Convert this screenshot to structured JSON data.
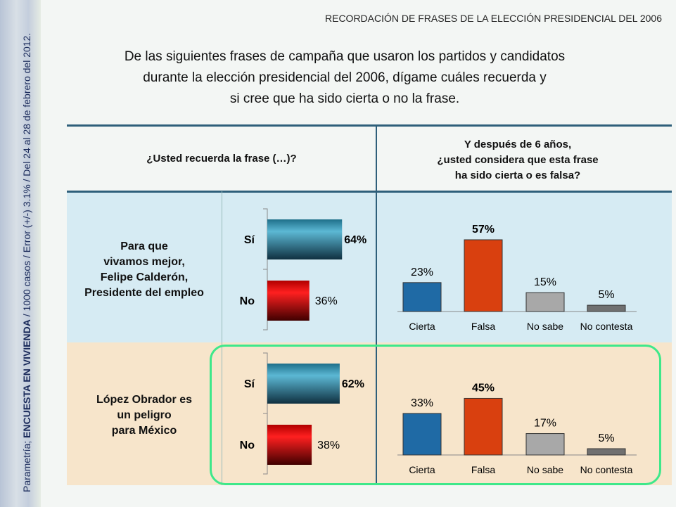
{
  "sidebar": {
    "prefix": "Parametría; ",
    "survey": "ENCUESTA EN VIVIENDA",
    "details": " / 1000 casos / Error (+/-) 3.1% / Del 24 al 28 de febrero del 2012."
  },
  "header": {
    "title": "RECORDACIÓN DE FRASES DE LA ELECCIÓN PRESIDENCIAL DEL 2006"
  },
  "question": [
    "De las siguientes frases de campaña que usaron los partidos y candidatos",
    "durante la elección presidencial del 2006, dígame cuáles recuerda y",
    "si cree que ha sido cierta o no la frase."
  ],
  "columns": {
    "left": "¿Usted recuerda la frase (…)?",
    "right": [
      "Y después de 6 años,",
      "¿usted considera que esta frase",
      "ha sido cierta o es falsa?"
    ]
  },
  "rows": [
    {
      "phrase": [
        "Para que",
        "vivamos mejor,",
        "Felipe Calderón,",
        "Presidente del empleo"
      ]
    },
    {
      "phrase": [
        "López Obrador es",
        "un peligro",
        "para México"
      ]
    }
  ],
  "colors": {
    "si": "#2a7f9a",
    "no": "#d00000",
    "cierta": "#1f6aa5",
    "falsa": "#d9400f",
    "no_sabe": "#a8a8a8",
    "no_contesta": "#707070",
    "row1_bg": "#d6ebf3",
    "row2_bg": "#f7e5cb",
    "highlight": "#3ee88a"
  },
  "chart_data": [
    {
      "type": "bar",
      "orientation": "horizontal",
      "categories": [
        "Sí",
        "No"
      ],
      "values": [
        64,
        36
      ],
      "unit": "%"
    },
    {
      "type": "bar",
      "categories": [
        "Cierta",
        "Falsa",
        "No sabe",
        "No contesta"
      ],
      "values": [
        23,
        57,
        15,
        5
      ],
      "unit": "%"
    },
    {
      "type": "bar",
      "orientation": "horizontal",
      "categories": [
        "Sí",
        "No"
      ],
      "values": [
        62,
        38
      ],
      "unit": "%"
    },
    {
      "type": "bar",
      "categories": [
        "Cierta",
        "Falsa",
        "No sabe",
        "No contesta"
      ],
      "values": [
        33,
        45,
        17,
        5
      ],
      "unit": "%"
    }
  ]
}
